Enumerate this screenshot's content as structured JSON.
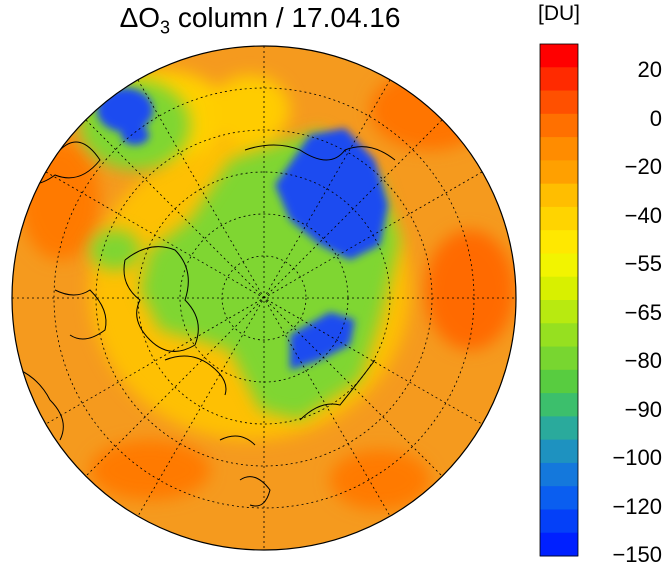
{
  "title_prefix": "ΔO",
  "title_sub": "3",
  "title_suffix": " column / 17.04.16",
  "colorbar": {
    "unit": "[DU]",
    "ticks": [
      "20",
      "0",
      "−20",
      "−40",
      "−55",
      "−65",
      "−80",
      "−90",
      "−100",
      "−120",
      "−150"
    ],
    "colors": [
      "#ff0000",
      "#ff2a00",
      "#ff5000",
      "#ff7000",
      "#ff8c00",
      "#ffa000",
      "#ffbe00",
      "#ffd400",
      "#ffe800",
      "#f2f400",
      "#d8f000",
      "#b8ea10",
      "#96e020",
      "#78d630",
      "#58cc40",
      "#3cbf6c",
      "#2aaa9c",
      "#1e92c0",
      "#1478dc",
      "#0a5ef0",
      "#0440f8",
      "#0020ff"
    ]
  },
  "map": {
    "background_color": "#f59a1e",
    "low_color": "#1e4cf0",
    "mid_color": "#7fd630",
    "projection": "north-polar-stereographic"
  }
}
